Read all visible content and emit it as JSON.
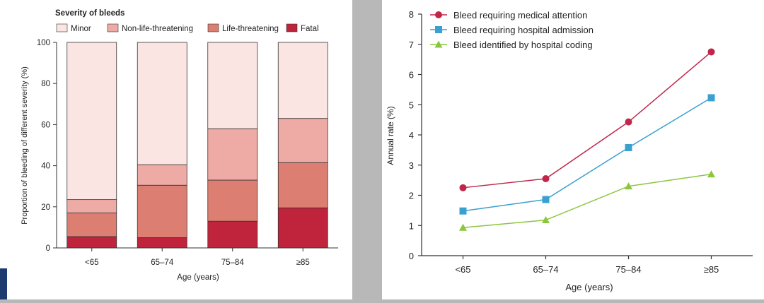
{
  "chart_data": [
    {
      "type": "bar",
      "stacked": true,
      "legend_title": "Severity of bleeds",
      "categories": [
        "<65",
        "65–74",
        "75–84",
        "≥85"
      ],
      "xlabel": "Age (years)",
      "ylabel": "Proportion of bleeding of different severity (%)",
      "ylim": [
        0,
        100
      ],
      "yticks": [
        0,
        20,
        40,
        60,
        80,
        100
      ],
      "legend_position": "top",
      "series": [
        {
          "name": "Fatal",
          "color": "#c0243c",
          "values": [
            5.5,
            5,
            13,
            19.5
          ]
        },
        {
          "name": "Life-threatening",
          "color": "#dc7f72",
          "values": [
            11.5,
            25.5,
            20,
            22
          ]
        },
        {
          "name": "Non-life-threatening",
          "color": "#eeaaa4",
          "values": [
            6.5,
            10,
            25,
            21.5
          ]
        },
        {
          "name": "Minor",
          "color": "#fae5e3",
          "values": [
            76.5,
            59.5,
            42,
            37
          ]
        }
      ],
      "legend_order": [
        "Minor",
        "Non-life-threatening",
        "Life-threatening",
        "Fatal"
      ]
    },
    {
      "type": "line",
      "categories": [
        "<65",
        "65–74",
        "75–84",
        "≥85"
      ],
      "xlabel": "Age (years)",
      "ylabel": "Annual rate (%)",
      "ylim": [
        0,
        8
      ],
      "yticks": [
        0,
        1,
        2,
        3,
        4,
        5,
        6,
        7,
        8
      ],
      "legend_position": "top-left",
      "series": [
        {
          "name": "Bleed requiring medical attention",
          "color": "#c0264a",
          "marker": "circle",
          "values": [
            2.25,
            2.55,
            4.43,
            6.75
          ]
        },
        {
          "name": "Bleed requiring hospital admission",
          "color": "#3aa0d0",
          "marker": "square",
          "values": [
            1.48,
            1.86,
            3.58,
            5.23
          ]
        },
        {
          "name": "Bleed identified by hospital coding",
          "color": "#8cc63f",
          "marker": "triangle",
          "values": [
            0.93,
            1.18,
            2.3,
            2.7
          ]
        }
      ]
    }
  ]
}
